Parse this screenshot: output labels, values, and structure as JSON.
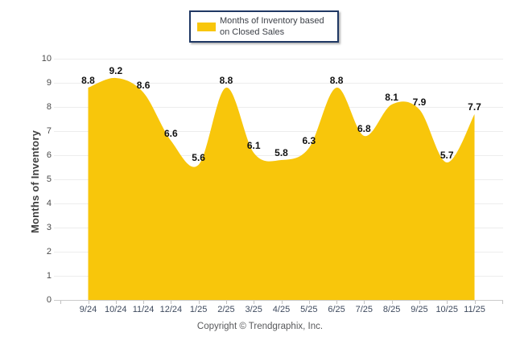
{
  "legend": {
    "label": "Months of Inventory based on Closed Sales",
    "swatch_color": "#F8C60B"
  },
  "y_axis_title": "Months of Inventory",
  "footer_copyright": "Copyright © Trendgraphix, Inc.",
  "chart_data": {
    "type": "area",
    "title": "",
    "xlabel": "",
    "ylabel": "Months of Inventory",
    "categories": [
      "9/24",
      "10/24",
      "11/24",
      "12/24",
      "1/25",
      "2/25",
      "3/25",
      "4/25",
      "5/25",
      "6/25",
      "7/25",
      "8/25",
      "9/25",
      "10/25",
      "11/25"
    ],
    "series": [
      {
        "name": "Months of Inventory based on Closed Sales",
        "values": [
          8.8,
          9.2,
          8.6,
          6.6,
          5.6,
          8.8,
          6.1,
          5.8,
          6.3,
          8.8,
          6.8,
          8.1,
          7.9,
          5.7,
          7.7
        ]
      }
    ],
    "ylim": [
      0,
      10
    ],
    "yticks": [
      0,
      1,
      2,
      3,
      4,
      5,
      6,
      7,
      8,
      9,
      10
    ],
    "grid": true,
    "data_labels": true,
    "legend_position": "top-center",
    "colors": {
      "area_fill": "#F8C60B",
      "grid": "#EDEDED",
      "axis_line": "#CBCBCB",
      "tick_mark": "#C0C0C0",
      "data_label": "#111111",
      "legend_border": "#1F3864"
    }
  }
}
